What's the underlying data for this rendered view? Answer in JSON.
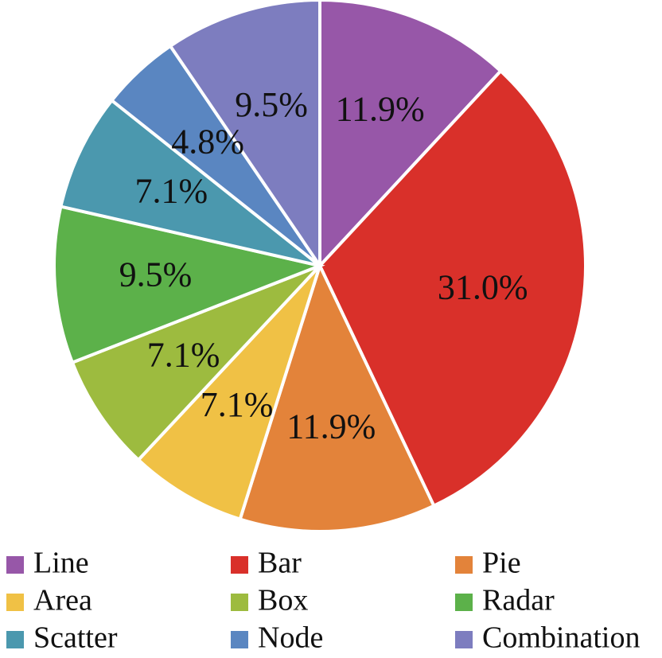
{
  "chart_data": {
    "type": "pie",
    "categories": [
      "Line",
      "Bar",
      "Pie",
      "Area",
      "Box",
      "Radar",
      "Scatter",
      "Node",
      "Combination"
    ],
    "values": [
      11.9,
      31.0,
      11.9,
      7.1,
      7.1,
      9.5,
      7.1,
      4.8,
      9.5
    ],
    "value_labels": [
      "11.9%",
      "31.0%",
      "11.9%",
      "7.1%",
      "7.1%",
      "9.5%",
      "7.1%",
      "4.8%",
      "9.5%"
    ],
    "colors": [
      "#9757a8",
      "#d9302a",
      "#e3833a",
      "#f0c145",
      "#9dbb3f",
      "#5cb14a",
      "#4b98ae",
      "#5a86c1",
      "#7d7dbf"
    ],
    "legend": "bottom"
  }
}
